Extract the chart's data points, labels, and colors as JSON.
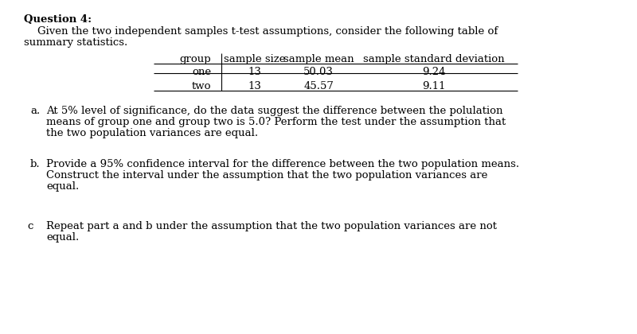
{
  "bg_color": "#ffffff",
  "title_bold": "Question 4:",
  "intro_line1": "    Given the two independent samples t-test assumptions, consider the following table of",
  "intro_line2": "summary statistics.",
  "table_headers": [
    "group",
    "sample size",
    "sample mean",
    "sample standard deviation"
  ],
  "table_rows": [
    [
      "one",
      "13",
      "50.03",
      "9.24"
    ],
    [
      "two",
      "13",
      "45.57",
      "9.11"
    ]
  ],
  "part_a_label": "a.",
  "part_a_lines": [
    "At 5% level of significance, do the data suggest the difference between the polulation",
    "means of group one and group two is 5.0? Perform the test under the assumption that",
    "the two population variances are equal."
  ],
  "part_b_label": "b.",
  "part_b_lines": [
    "Provide a 95% confidence interval for the difference between the two population means.",
    "Construct the interval under the assumption that the two population variances are",
    "equal."
  ],
  "part_c_label": "c",
  "part_c_lines": [
    "Repeat part a and b under the assumption that the two population variances are not",
    "equal."
  ],
  "font_size": 9.5,
  "font_family": "DejaVu Serif"
}
